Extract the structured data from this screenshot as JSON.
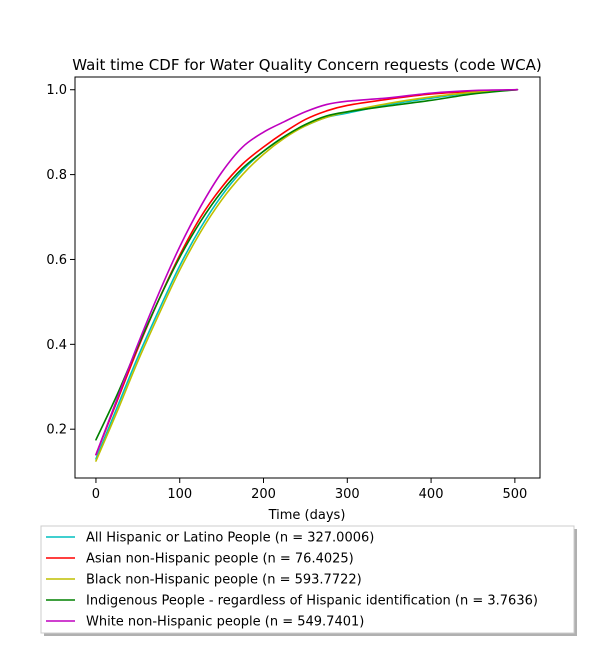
{
  "chart_data": {
    "type": "line",
    "title": "Wait time CDF for Water Quality Concern  requests (code WCA)",
    "xlabel": "Time (days)",
    "ylabel": "",
    "xlim": [
      -25,
      530
    ],
    "ylim": [
      0.085,
      1.03
    ],
    "xticks": [
      0,
      100,
      200,
      300,
      400,
      500
    ],
    "xtick_labels": [
      "0",
      "100",
      "200",
      "300",
      "400",
      "500"
    ],
    "yticks": [
      0.2,
      0.4,
      0.6,
      0.8,
      1.0
    ],
    "ytick_labels": [
      "0.2",
      "0.4",
      "0.6",
      "0.8",
      "1.0"
    ],
    "grid": false,
    "legend_position": "below plot",
    "x": [
      0,
      25,
      50,
      75,
      100,
      125,
      150,
      175,
      200,
      225,
      250,
      275,
      300,
      350,
      400,
      450,
      503
    ],
    "series": [
      {
        "name": "All Hispanic or Latino People (n = 327.0006)",
        "color": "#00bfbf",
        "values": [
          0.13,
          0.25,
          0.37,
          0.48,
          0.585,
          0.675,
          0.75,
          0.81,
          0.855,
          0.89,
          0.915,
          0.935,
          0.945,
          0.965,
          0.98,
          0.993,
          1.0
        ]
      },
      {
        "name": "Asian non-Hispanic people (n = 76.4025)",
        "color": "#ff0000",
        "values": [
          0.14,
          0.265,
          0.39,
          0.505,
          0.61,
          0.7,
          0.77,
          0.825,
          0.865,
          0.9,
          0.93,
          0.95,
          0.963,
          0.978,
          0.99,
          0.996,
          1.0
        ]
      },
      {
        "name": "Black non-Hispanic people (n = 593.7722)",
        "color": "#bfbf00",
        "values": [
          0.125,
          0.24,
          0.36,
          0.47,
          0.575,
          0.665,
          0.74,
          0.8,
          0.848,
          0.886,
          0.915,
          0.935,
          0.948,
          0.968,
          0.983,
          0.994,
          1.0
        ]
      },
      {
        "name": "Indigenous People - regardless of Hispanic identification (n = 3.7636)",
        "color": "#008000",
        "values": [
          0.175,
          0.28,
          0.395,
          0.505,
          0.605,
          0.69,
          0.76,
          0.815,
          0.855,
          0.89,
          0.918,
          0.938,
          0.948,
          0.962,
          0.975,
          0.99,
          1.0
        ]
      },
      {
        "name": "White non-Hispanic people (n = 549.7401)",
        "color": "#bf00bf",
        "values": [
          0.14,
          0.27,
          0.4,
          0.52,
          0.63,
          0.725,
          0.805,
          0.865,
          0.9,
          0.925,
          0.948,
          0.965,
          0.973,
          0.981,
          0.992,
          0.998,
          1.0
        ]
      }
    ]
  }
}
